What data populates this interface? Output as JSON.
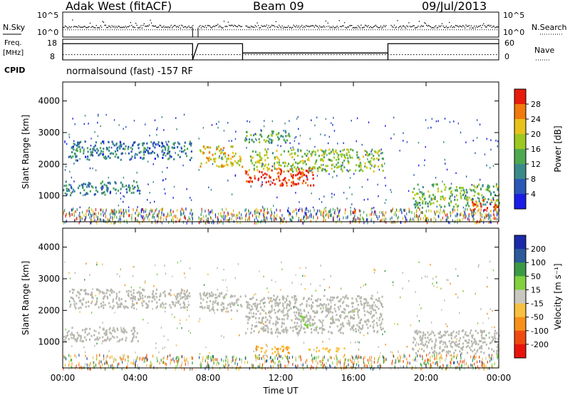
{
  "header": {
    "station": "Adak West (fitACF)",
    "beam": "Beam 09",
    "date": "09/Jul/2013"
  },
  "noise_panel": {
    "left_label": "N.Sky",
    "right_label": "N.Search",
    "left_ticks": [
      "10^5",
      "10^0"
    ],
    "right_ticks": [
      "10^5",
      "10^0"
    ]
  },
  "freq_panel": {
    "left_label_line1": "Freq.",
    "left_label_line2": "[MHz]",
    "right_label": "Nave",
    "left_ticks": [
      "18",
      "8"
    ],
    "right_ticks": [
      "60",
      "0"
    ]
  },
  "cpid": {
    "label": "CPID",
    "text": "normalsound (fast) -157 RF"
  },
  "power_panel": {
    "ylabel": "Slant Range [km]",
    "yticks": [
      "4000",
      "3000",
      "2000",
      "1000"
    ],
    "colorbar_label": "Power [dB]",
    "colorbar_ticks": [
      "28",
      "24",
      "20",
      "16",
      "12",
      "8",
      "4"
    ]
  },
  "velocity_panel": {
    "ylabel": "Slant Range [km]",
    "yticks": [
      "4000",
      "3000",
      "2000",
      "1000"
    ],
    "colorbar_label": "Velocity [m s⁻¹]",
    "colorbar_ticks": [
      "200",
      "100",
      "50",
      "15",
      "-15",
      "-50",
      "-100",
      "-200"
    ]
  },
  "xaxis": {
    "label": "Time UT",
    "ticks": [
      "00:00",
      "04:00",
      "08:00",
      "12:00",
      "16:00",
      "20:00",
      "00:00"
    ]
  },
  "colors": {
    "power_scale": [
      "#1a1ee6",
      "#2a58b8",
      "#3a8a8a",
      "#4ea850",
      "#9cc820",
      "#e8c21a",
      "#f07a0c",
      "#e81c0c"
    ],
    "velocity_scale": [
      "#e8140c",
      "#f04a10",
      "#f89018",
      "#f8c040",
      "#c8c8c0",
      "#80d040",
      "#3a9a44",
      "#2a5a9a",
      "#1a2aa8"
    ],
    "ground_scatter": "#b8b8b0"
  },
  "chart_data": {
    "type": "heatmap",
    "x_range_hours": [
      0,
      24
    ],
    "y_range_km": [
      180,
      4600
    ],
    "data_gaps_hours": [
      [
        7.15,
        7.45
      ],
      [
        9.85,
        10.0
      ],
      [
        17.8,
        18.0
      ]
    ],
    "power_db_range": [
      0,
      30
    ],
    "velocity_range_ms": [
      -200,
      200
    ],
    "power_regions": [
      {
        "t0": 0.3,
        "t1": 7.1,
        "r0": 2150,
        "r1": 2750,
        "power_db": 8
      },
      {
        "t0": 0.0,
        "t1": 4.2,
        "r0": 1050,
        "r1": 1500,
        "power_db": 9
      },
      {
        "t0": 7.5,
        "t1": 9.9,
        "r0": 1950,
        "r1": 2600,
        "power_db": 20
      },
      {
        "t0": 10.0,
        "t1": 13.8,
        "r0": 1350,
        "r1": 1900,
        "power_db": 28
      },
      {
        "t0": 10.2,
        "t1": 17.6,
        "r0": 1800,
        "r1": 2500,
        "power_db": 16
      },
      {
        "t0": 10.0,
        "t1": 12.5,
        "r0": 2700,
        "r1": 3100,
        "power_db": 12
      },
      {
        "t0": 19.2,
        "t1": 24.0,
        "r0": 650,
        "r1": 1400,
        "power_db": 14
      },
      {
        "t0": 22.5,
        "t1": 24.0,
        "r0": 550,
        "r1": 900,
        "power_db": 26
      }
    ],
    "velocity_regions": [
      {
        "t0": 0.3,
        "t1": 7.1,
        "r0": 2100,
        "r1": 2700,
        "velocity_ms": 0,
        "ground_scatter": true
      },
      {
        "t0": 0.0,
        "t1": 4.2,
        "r0": 1050,
        "r1": 1500,
        "velocity_ms": 0,
        "ground_scatter": true
      },
      {
        "t0": 7.5,
        "t1": 9.9,
        "r0": 1950,
        "r1": 2600,
        "velocity_ms": 0,
        "ground_scatter": true
      },
      {
        "t0": 10.0,
        "t1": 17.6,
        "r0": 1300,
        "r1": 2500,
        "velocity_ms": 0,
        "ground_scatter": true
      },
      {
        "t0": 19.2,
        "t1": 24.0,
        "r0": 650,
        "r1": 1400,
        "velocity_ms": 0,
        "ground_scatter": true
      },
      {
        "t0": 10.5,
        "t1": 12.5,
        "r0": 650,
        "r1": 900,
        "velocity_ms": -60,
        "ground_scatter": false
      },
      {
        "t0": 13.5,
        "t1": 15.5,
        "r0": 700,
        "r1": 850,
        "velocity_ms": -40,
        "ground_scatter": false
      },
      {
        "t0": 13.0,
        "t1": 13.6,
        "r0": 1500,
        "r1": 1900,
        "velocity_ms": 30,
        "ground_scatter": false
      }
    ],
    "nave_segments": [
      {
        "t0": 0.0,
        "t1": 7.15,
        "nave": 47
      },
      {
        "t0": 7.45,
        "t1": 9.9,
        "nave": 47
      },
      {
        "t0": 9.9,
        "t1": 17.9,
        "nave": 20
      },
      {
        "t0": 17.9,
        "t1": 24.0,
        "nave": 47
      }
    ],
    "freq_mhz": 10.5
  }
}
